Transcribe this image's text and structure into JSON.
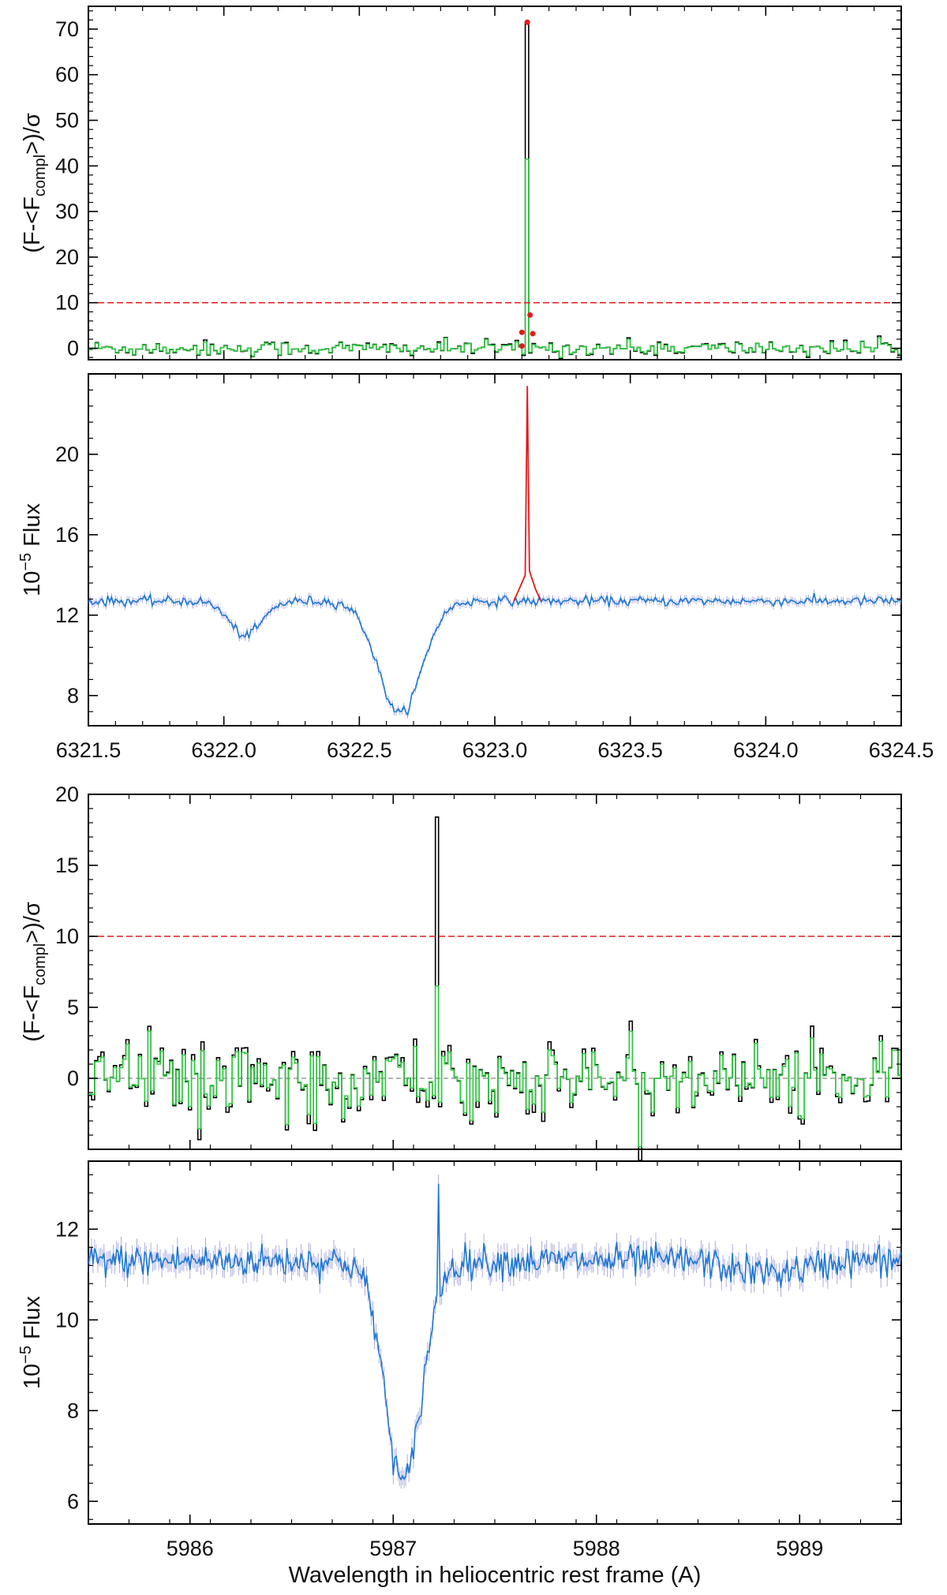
{
  "chart_data": [
    {
      "type": "line",
      "panel": "top-significance",
      "ylabel": "(F-<F_compl>)/σ",
      "ylabel_parts": {
        "main": "(F-<F",
        "sub": "compl",
        "tail": ">)/σ"
      },
      "xlim": [
        6321.5,
        6324.5
      ],
      "ylim": [
        -2.5,
        75
      ],
      "yticks": [
        0,
        10,
        20,
        30,
        40,
        50,
        60,
        70
      ],
      "ytick_labels": [
        "0",
        "10",
        "20",
        "30",
        "40",
        "50",
        "60",
        "70"
      ],
      "threshold": 10,
      "peak": {
        "x": 6323.12,
        "y_black": 71.5,
        "y_green": 41.5
      },
      "flagged_points": [
        {
          "x": 6323.1,
          "y": 0.5
        },
        {
          "x": 6323.1,
          "y": 3.5
        },
        {
          "x": 6323.12,
          "y": 71.5
        },
        {
          "x": 6323.13,
          "y": 7.3
        },
        {
          "x": 6323.14,
          "y": 3.2
        }
      ],
      "series": [],
      "noise_amplitude": 1.0,
      "colors": {
        "raw": "#000000",
        "corrected": "#2ecc40",
        "threshold": "#e41a1c",
        "points": "#e41a1c"
      }
    },
    {
      "type": "line",
      "panel": "top-flux",
      "ylabel": "10^-5 Flux",
      "ylabel_parts": {
        "pre": "10",
        "sup": "−5",
        "post": " Flux"
      },
      "xlim": [
        6321.5,
        6324.5
      ],
      "ylim": [
        6.5,
        24
      ],
      "yticks": [
        8,
        12,
        16,
        20
      ],
      "ytick_labels": [
        "8",
        "12",
        "16",
        "20"
      ],
      "xticks": [
        6321.5,
        6322.0,
        6322.5,
        6323.0,
        6323.5,
        6324.0,
        6324.5
      ],
      "xtick_labels": [
        "6321.5",
        "6322.0",
        "6322.5",
        "6323.0",
        "6323.5",
        "6324.0",
        "6324.5"
      ],
      "continuum": 12.7,
      "absorption_lines": [
        {
          "center": 6322.08,
          "depth": 1.7,
          "width": 0.06
        },
        {
          "center": 6322.65,
          "depth": 5.6,
          "width": 0.08
        }
      ],
      "emission_peak": {
        "x": 6323.12,
        "y": 23.4
      },
      "colors": {
        "spectrum": "#1f78d4",
        "errorbars": "#7f7fd0",
        "emission": "#e41a1c"
      }
    },
    {
      "type": "line",
      "panel": "bottom-significance",
      "ylabel": "(F-<F_compl>)/σ",
      "ylabel_parts": {
        "main": "(F-<F",
        "sub": "compl",
        "tail": ">)/σ"
      },
      "xlim": [
        5985.5,
        5989.5
      ],
      "ylim": [
        -5,
        20
      ],
      "yticks": [
        0,
        5,
        10,
        15,
        20
      ],
      "ytick_labels": [
        "0",
        "5",
        "10",
        "15",
        "20"
      ],
      "threshold": 10,
      "peak": {
        "x": 5987.22,
        "y_black": 18.4,
        "y_green": 6.5
      },
      "noise_amplitude": 1.6,
      "colors": {
        "raw": "#000000",
        "corrected": "#2ecc40",
        "threshold": "#e41a1c",
        "zero": "#888888"
      }
    },
    {
      "type": "line",
      "panel": "bottom-flux",
      "ylabel": "10^-5 Flux",
      "ylabel_parts": {
        "pre": "10",
        "sup": "−5",
        "post": " Flux"
      },
      "xlabel": "Wavelength in heliocentric rest frame (A)",
      "xlim": [
        5985.5,
        5989.5
      ],
      "ylim": [
        5.5,
        13.5
      ],
      "yticks": [
        6,
        8,
        10,
        12
      ],
      "ytick_labels": [
        "6",
        "8",
        "10",
        "12"
      ],
      "xticks": [
        5986,
        5987,
        5988,
        5989
      ],
      "xtick_labels": [
        "5986",
        "5987",
        "5988",
        "5989"
      ],
      "continuum": 11.3,
      "absorption_lines": [
        {
          "center": 5987.05,
          "depth": 4.9,
          "width": 0.09
        }
      ],
      "emission_peak": {
        "x": 5987.22,
        "y": 13.0
      },
      "colors": {
        "spectrum": "#1f78d4",
        "errorbars": "#7f7fd0"
      }
    }
  ]
}
